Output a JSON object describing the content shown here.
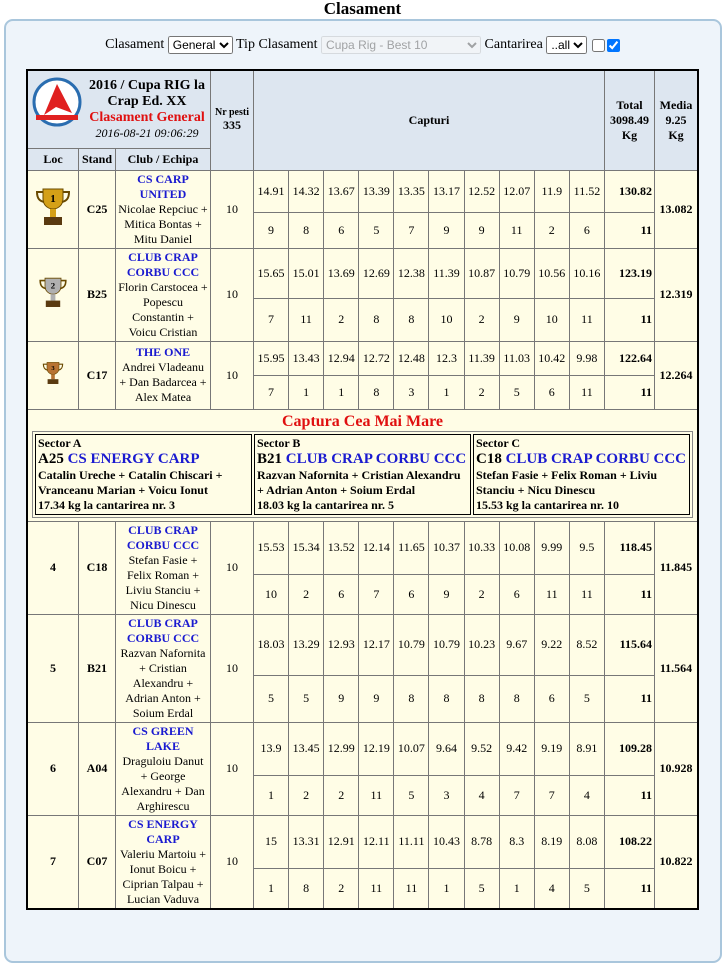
{
  "title": "Clasament",
  "filters": {
    "clasament_label": "Clasament",
    "clasament_value": "General",
    "tip_label": "Tip Clasament",
    "tip_value": "Cupa Rig - Best 10",
    "cantarirea_label": "Cantarirea",
    "cantarirea_value": "..all",
    "checkbox1": false,
    "checkbox2": true
  },
  "header": {
    "competition": "2016 / Cupa RIG la Crap Ed. XX",
    "subtitle": "Clasament General",
    "datetime": "2016-08-21 09:06:29",
    "logo_text": "SPORT SERVICE SA",
    "nr_pesti_label": "Nr pesti",
    "nr_pesti": "335",
    "capturi_label": "Capturi",
    "total_label": "Total",
    "total_value": "3098.49",
    "total_unit": "Kg",
    "media_label": "Media",
    "media_value": "9.25",
    "media_unit": "Kg",
    "col_loc": "Loc",
    "col_stand": "Stand",
    "col_club": "Club / Echipa"
  },
  "colors": {
    "club": "#1a1ad0",
    "accent_red": "#e01010",
    "header_bg": "#dde6f0",
    "row_bg": "#fffde6"
  },
  "rows": [
    {
      "loc": "1",
      "trophy": "gold-trophy",
      "stand": "C25",
      "club": "CS CARP UNITED",
      "names": "Nicolae Repciuc + Mitica Bontas + Mitu Daniel",
      "nr": "10",
      "weights": [
        "14.91",
        "14.32",
        "13.67",
        "13.39",
        "13.35",
        "13.17",
        "12.52",
        "12.07",
        "11.9",
        "11.52"
      ],
      "counts": [
        "9",
        "8",
        "6",
        "5",
        "7",
        "9",
        "9",
        "11",
        "2",
        "6"
      ],
      "total": "130.82",
      "count": "11",
      "media": "13.082"
    },
    {
      "loc": "2",
      "trophy": "silver-trophy",
      "stand": "B25",
      "club": "CLUB CRAP CORBU CCC",
      "names": "Florin Carstocea + Popescu Constantin + Voicu Cristian",
      "nr": "10",
      "weights": [
        "15.65",
        "15.01",
        "13.69",
        "12.69",
        "12.38",
        "11.39",
        "10.87",
        "10.79",
        "10.56",
        "10.16"
      ],
      "counts": [
        "7",
        "11",
        "2",
        "8",
        "8",
        "10",
        "2",
        "9",
        "10",
        "11"
      ],
      "total": "123.19",
      "count": "11",
      "media": "12.319"
    },
    {
      "loc": "3",
      "trophy": "bronze-trophy",
      "stand": "C17",
      "club": "THE ONE",
      "names": "Andrei Vladeanu + Dan Badarcea + Alex Matea",
      "nr": "10",
      "weights": [
        "15.95",
        "13.43",
        "12.94",
        "12.72",
        "12.48",
        "12.3",
        "11.39",
        "11.03",
        "10.42",
        "9.98"
      ],
      "counts": [
        "7",
        "1",
        "1",
        "8",
        "3",
        "1",
        "2",
        "5",
        "6",
        "11"
      ],
      "total": "122.64",
      "count": "11",
      "media": "12.264"
    }
  ],
  "biggest": {
    "title": "Captura Cea Mai Mare",
    "sectors": [
      {
        "sector": "Sector A",
        "stand": "A25",
        "club": "CS ENERGY CARP",
        "names": "Catalin Ureche + Catalin Chiscari + Vranceanu Marian + Voicu Ionut",
        "info": "17.34 kg la cantarirea nr. 3"
      },
      {
        "sector": "Sector B",
        "stand": "B21",
        "club": "CLUB CRAP CORBU CCC",
        "names": "Razvan Nafornita + Cristian Alexandru + Adrian Anton + Soium Erdal",
        "info": "18.03 kg la cantarirea nr. 5"
      },
      {
        "sector": "Sector C",
        "stand": "C18",
        "club": "CLUB CRAP CORBU CCC",
        "names": "Stefan Fasie + Felix Roman + Liviu Stanciu + Nicu Dinescu",
        "info": "15.53 kg la cantarirea nr. 10"
      }
    ]
  },
  "rows2": [
    {
      "loc": "4",
      "stand": "C18",
      "club": "CLUB CRAP CORBU CCC",
      "names": "Stefan Fasie + Felix Roman + Liviu Stanciu + Nicu Dinescu",
      "nr": "10",
      "weights": [
        "15.53",
        "15.34",
        "13.52",
        "12.14",
        "11.65",
        "10.37",
        "10.33",
        "10.08",
        "9.99",
        "9.5"
      ],
      "counts": [
        "10",
        "2",
        "6",
        "7",
        "6",
        "9",
        "2",
        "6",
        "11",
        "11"
      ],
      "total": "118.45",
      "count": "11",
      "media": "11.845"
    },
    {
      "loc": "5",
      "stand": "B21",
      "club": "CLUB CRAP CORBU CCC",
      "names": "Razvan Nafornita + Cristian Alexandru + Adrian Anton + Soium Erdal",
      "nr": "10",
      "weights": [
        "18.03",
        "13.29",
        "12.93",
        "12.17",
        "10.79",
        "10.79",
        "10.23",
        "9.67",
        "9.22",
        "8.52"
      ],
      "counts": [
        "5",
        "5",
        "9",
        "9",
        "8",
        "8",
        "8",
        "8",
        "6",
        "5"
      ],
      "total": "115.64",
      "count": "11",
      "media": "11.564"
    },
    {
      "loc": "6",
      "stand": "A04",
      "club": "CS GREEN LAKE",
      "names": "Draguloiu Danut + George Alexandru + Dan Arghirescu",
      "nr": "10",
      "weights": [
        "13.9",
        "13.45",
        "12.99",
        "12.19",
        "10.07",
        "9.64",
        "9.52",
        "9.42",
        "9.19",
        "8.91"
      ],
      "counts": [
        "1",
        "2",
        "2",
        "11",
        "5",
        "3",
        "4",
        "7",
        "7",
        "4"
      ],
      "total": "109.28",
      "count": "11",
      "media": "10.928"
    },
    {
      "loc": "7",
      "stand": "C07",
      "club": "CS ENERGY CARP",
      "names": "Valeriu Martoiu + Ionut Boicu + Ciprian Talpau + Lucian Vaduva",
      "nr": "10",
      "weights": [
        "15",
        "13.31",
        "12.91",
        "12.11",
        "11.11",
        "10.43",
        "8.78",
        "8.3",
        "8.19",
        "8.08"
      ],
      "counts": [
        "1",
        "8",
        "2",
        "11",
        "11",
        "1",
        "5",
        "1",
        "4",
        "5"
      ],
      "total": "108.22",
      "count": "11",
      "media": "10.822"
    }
  ]
}
